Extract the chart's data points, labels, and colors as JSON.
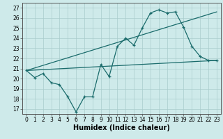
{
  "title": "",
  "xlabel": "Humidex (Indice chaleur)",
  "ylabel": "",
  "bg_color": "#ceeaea",
  "grid_color": "#aacccc",
  "line_color": "#1a6b6b",
  "xlim": [
    -0.5,
    23.5
  ],
  "ylim": [
    16.5,
    27.5
  ],
  "xticks": [
    0,
    1,
    2,
    3,
    4,
    5,
    6,
    7,
    8,
    9,
    10,
    11,
    12,
    13,
    14,
    15,
    16,
    17,
    18,
    19,
    20,
    21,
    22,
    23
  ],
  "yticks": [
    17,
    18,
    19,
    20,
    21,
    22,
    23,
    24,
    25,
    26,
    27
  ],
  "line1_x": [
    0,
    1,
    2,
    3,
    4,
    5,
    6,
    7,
    8,
    9,
    10,
    11,
    12,
    13,
    14,
    15,
    16,
    17,
    18,
    19,
    20,
    21,
    22,
    23
  ],
  "line1_y": [
    20.8,
    20.1,
    20.5,
    19.6,
    19.4,
    18.2,
    16.7,
    18.2,
    18.2,
    21.4,
    20.2,
    23.2,
    24.0,
    23.3,
    25.0,
    26.5,
    26.8,
    26.5,
    26.6,
    25.1,
    23.2,
    22.2,
    21.8,
    21.8
  ],
  "line2_x": [
    0,
    23
  ],
  "line2_y": [
    20.8,
    26.6
  ],
  "line3_x": [
    0,
    23
  ],
  "line3_y": [
    20.8,
    21.8
  ],
  "xlabel_fontsize": 7,
  "tick_fontsize": 5.5
}
